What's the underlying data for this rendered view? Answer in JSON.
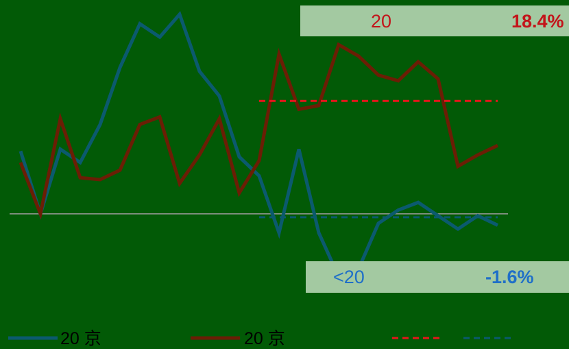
{
  "chart_data": {
    "type": "line",
    "x": [
      1,
      2,
      3,
      4,
      5,
      6,
      7,
      8,
      9,
      10,
      11,
      12,
      13,
      14,
      15,
      16,
      17,
      18,
      19,
      20,
      21,
      22,
      23,
      24,
      25
    ],
    "ylim": [
      -30,
      110
    ],
    "grid": false,
    "legend_position": "bottom",
    "series": [
      {
        "name": "20  京",
        "color": "#0b5a6e",
        "values": [
          33,
          0,
          34,
          27,
          47,
          77,
          100,
          93,
          105,
          75,
          62,
          30,
          20,
          -10,
          34,
          -10,
          -33,
          -29,
          -5,
          2,
          6,
          -1,
          -8,
          -1,
          -6
        ]
      },
      {
        "name": "20   京",
        "color": "#6b1e05",
        "values": [
          27,
          0,
          50,
          19,
          18,
          23,
          47,
          51,
          16,
          31,
          50,
          11,
          28,
          84,
          55,
          57,
          89,
          83,
          73,
          70,
          80,
          71,
          25,
          31,
          36
        ]
      }
    ],
    "reference_lines": [
      {
        "name": "",
        "color": "#e8151b",
        "style": "dashed",
        "y": 59.4,
        "from_x": 13,
        "to_x": 25
      },
      {
        "name": "",
        "color": "#0b5a6e",
        "style": "dashed",
        "y": -1.8,
        "from_x": 13,
        "to_x": 25
      }
    ],
    "zero_line": 0
  },
  "annotations": {
    "top": {
      "label": "20",
      "value": "18.4%",
      "label_color": "#c3141a",
      "value_color": "#c3141a"
    },
    "bottom": {
      "label": "<20",
      "value": "-1.6%",
      "label_color": "#1f6fc8",
      "value_color": "#1f6fc8"
    }
  },
  "legend": [
    {
      "label": "20  京",
      "color": "#0b5a6e",
      "style": "solid"
    },
    {
      "label": "20   京",
      "color": "#6b1e05",
      "style": "solid"
    },
    {
      "label": "",
      "color": "#e8151b",
      "style": "dashed"
    },
    {
      "label": "",
      "color": "#0b5a6e",
      "style": "dashed"
    }
  ],
  "colors": {
    "background": "#025a06",
    "box": "#a3c9a1",
    "zero_line": "#9a9a9a"
  }
}
